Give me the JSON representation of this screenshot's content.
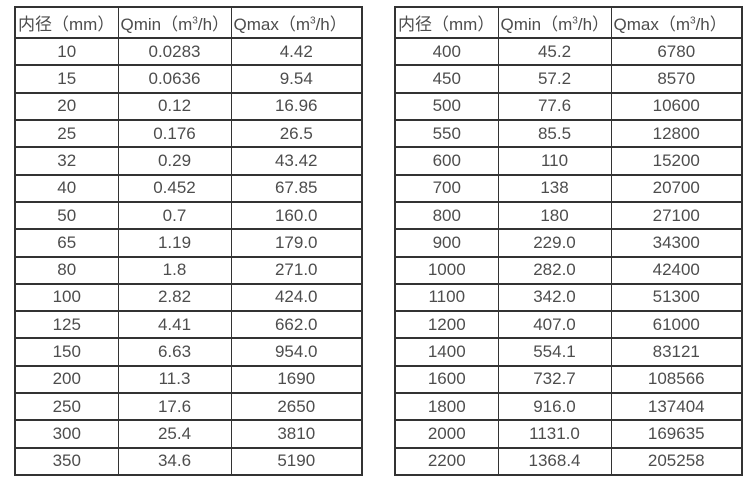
{
  "styles": {
    "border_color": "#333333",
    "text_color": "#4d4d4d",
    "background": "#ffffff"
  },
  "chart_data": [
    {
      "type": "table",
      "title": "",
      "columns": [
        "内径（mm）",
        "Qmin（m³/h）",
        "Qmax（m³/h）"
      ],
      "header_parts": [
        {
          "pre": "内径（mm）",
          "sup": "",
          "post": ""
        },
        {
          "pre": "Qmin（m",
          "sup": "3",
          "post": "/h）"
        },
        {
          "pre": "Qmax（m",
          "sup": "3",
          "post": "/h）"
        }
      ],
      "rows": [
        [
          "10",
          "0.0283",
          "4.42"
        ],
        [
          "15",
          "0.0636",
          "9.54"
        ],
        [
          "20",
          "0.12",
          "16.96"
        ],
        [
          "25",
          "0.176",
          "26.5"
        ],
        [
          "32",
          "0.29",
          "43.42"
        ],
        [
          "40",
          "0.452",
          "67.85"
        ],
        [
          "50",
          "0.7",
          "160.0"
        ],
        [
          "65",
          "1.19",
          "179.0"
        ],
        [
          "80",
          "1.8",
          "271.0"
        ],
        [
          "100",
          "2.82",
          "424.0"
        ],
        [
          "125",
          "4.41",
          "662.0"
        ],
        [
          "150",
          "6.63",
          "954.0"
        ],
        [
          "200",
          "11.3",
          "1690"
        ],
        [
          "250",
          "17.6",
          "2650"
        ],
        [
          "300",
          "25.4",
          "3810"
        ],
        [
          "350",
          "34.6",
          "5190"
        ]
      ]
    },
    {
      "type": "table",
      "title": "",
      "columns": [
        "内径（mm）",
        "Qmin（m³/h）",
        "Qmax（m³/h）"
      ],
      "header_parts": [
        {
          "pre": "内径（mm）",
          "sup": "",
          "post": ""
        },
        {
          "pre": "Qmin（m",
          "sup": "3",
          "post": "/h）"
        },
        {
          "pre": "Qmax（m",
          "sup": "3",
          "post": "/h）"
        }
      ],
      "rows": [
        [
          "400",
          "45.2",
          "6780"
        ],
        [
          "450",
          "57.2",
          "8570"
        ],
        [
          "500",
          "77.6",
          "10600"
        ],
        [
          "550",
          "85.5",
          "12800"
        ],
        [
          "600",
          "110",
          "15200"
        ],
        [
          "700",
          "138",
          "20700"
        ],
        [
          "800",
          "180",
          "27100"
        ],
        [
          "900",
          "229.0",
          "34300"
        ],
        [
          "1000",
          "282.0",
          "42400"
        ],
        [
          "1100",
          "342.0",
          "51300"
        ],
        [
          "1200",
          "407.0",
          "61000"
        ],
        [
          "1400",
          "554.1",
          "83121"
        ],
        [
          "1600",
          "732.7",
          "108566"
        ],
        [
          "1800",
          "916.0",
          "137404"
        ],
        [
          "2000",
          "1131.0",
          "169635"
        ],
        [
          "2200",
          "1368.4",
          "205258"
        ]
      ]
    }
  ]
}
